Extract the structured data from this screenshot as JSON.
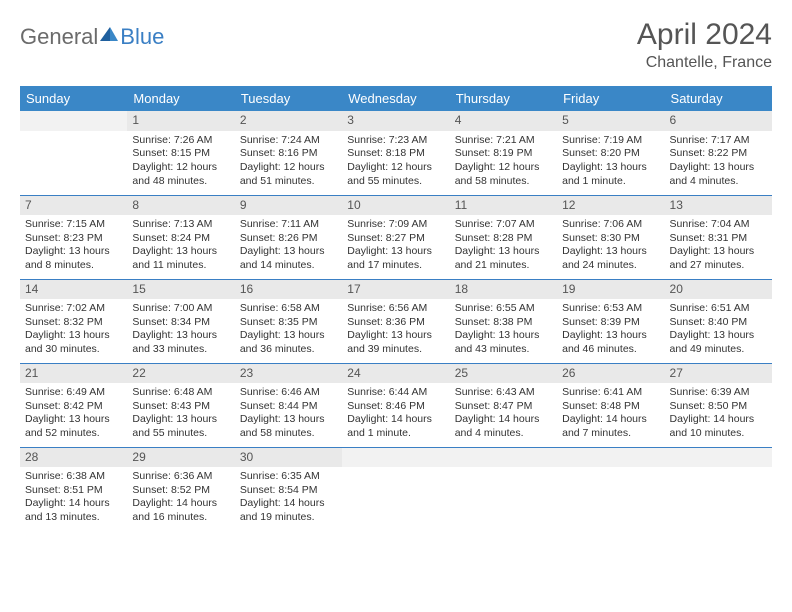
{
  "logo": {
    "general": "General",
    "blue": "Blue"
  },
  "title": "April 2024",
  "location": "Chantelle, France",
  "colors": {
    "header_bg": "#3a87c7",
    "border": "#3a7fc4",
    "daynum_bg": "#e9e9e9",
    "logo_gray": "#6b6b6b",
    "logo_blue": "#3a7fc4"
  },
  "typography": {
    "title_fontsize": 30,
    "location_fontsize": 16,
    "dayheader_fontsize": 13,
    "cell_fontsize": 10.5
  },
  "day_headers": [
    "Sunday",
    "Monday",
    "Tuesday",
    "Wednesday",
    "Thursday",
    "Friday",
    "Saturday"
  ],
  "weeks": [
    [
      null,
      {
        "d": "1",
        "sr": "Sunrise: 7:26 AM",
        "ss": "Sunset: 8:15 PM",
        "dl1": "Daylight: 12 hours",
        "dl2": "and 48 minutes."
      },
      {
        "d": "2",
        "sr": "Sunrise: 7:24 AM",
        "ss": "Sunset: 8:16 PM",
        "dl1": "Daylight: 12 hours",
        "dl2": "and 51 minutes."
      },
      {
        "d": "3",
        "sr": "Sunrise: 7:23 AM",
        "ss": "Sunset: 8:18 PM",
        "dl1": "Daylight: 12 hours",
        "dl2": "and 55 minutes."
      },
      {
        "d": "4",
        "sr": "Sunrise: 7:21 AM",
        "ss": "Sunset: 8:19 PM",
        "dl1": "Daylight: 12 hours",
        "dl2": "and 58 minutes."
      },
      {
        "d": "5",
        "sr": "Sunrise: 7:19 AM",
        "ss": "Sunset: 8:20 PM",
        "dl1": "Daylight: 13 hours",
        "dl2": "and 1 minute."
      },
      {
        "d": "6",
        "sr": "Sunrise: 7:17 AM",
        "ss": "Sunset: 8:22 PM",
        "dl1": "Daylight: 13 hours",
        "dl2": "and 4 minutes."
      }
    ],
    [
      {
        "d": "7",
        "sr": "Sunrise: 7:15 AM",
        "ss": "Sunset: 8:23 PM",
        "dl1": "Daylight: 13 hours",
        "dl2": "and 8 minutes."
      },
      {
        "d": "8",
        "sr": "Sunrise: 7:13 AM",
        "ss": "Sunset: 8:24 PM",
        "dl1": "Daylight: 13 hours",
        "dl2": "and 11 minutes."
      },
      {
        "d": "9",
        "sr": "Sunrise: 7:11 AM",
        "ss": "Sunset: 8:26 PM",
        "dl1": "Daylight: 13 hours",
        "dl2": "and 14 minutes."
      },
      {
        "d": "10",
        "sr": "Sunrise: 7:09 AM",
        "ss": "Sunset: 8:27 PM",
        "dl1": "Daylight: 13 hours",
        "dl2": "and 17 minutes."
      },
      {
        "d": "11",
        "sr": "Sunrise: 7:07 AM",
        "ss": "Sunset: 8:28 PM",
        "dl1": "Daylight: 13 hours",
        "dl2": "and 21 minutes."
      },
      {
        "d": "12",
        "sr": "Sunrise: 7:06 AM",
        "ss": "Sunset: 8:30 PM",
        "dl1": "Daylight: 13 hours",
        "dl2": "and 24 minutes."
      },
      {
        "d": "13",
        "sr": "Sunrise: 7:04 AM",
        "ss": "Sunset: 8:31 PM",
        "dl1": "Daylight: 13 hours",
        "dl2": "and 27 minutes."
      }
    ],
    [
      {
        "d": "14",
        "sr": "Sunrise: 7:02 AM",
        "ss": "Sunset: 8:32 PM",
        "dl1": "Daylight: 13 hours",
        "dl2": "and 30 minutes."
      },
      {
        "d": "15",
        "sr": "Sunrise: 7:00 AM",
        "ss": "Sunset: 8:34 PM",
        "dl1": "Daylight: 13 hours",
        "dl2": "and 33 minutes."
      },
      {
        "d": "16",
        "sr": "Sunrise: 6:58 AM",
        "ss": "Sunset: 8:35 PM",
        "dl1": "Daylight: 13 hours",
        "dl2": "and 36 minutes."
      },
      {
        "d": "17",
        "sr": "Sunrise: 6:56 AM",
        "ss": "Sunset: 8:36 PM",
        "dl1": "Daylight: 13 hours",
        "dl2": "and 39 minutes."
      },
      {
        "d": "18",
        "sr": "Sunrise: 6:55 AM",
        "ss": "Sunset: 8:38 PM",
        "dl1": "Daylight: 13 hours",
        "dl2": "and 43 minutes."
      },
      {
        "d": "19",
        "sr": "Sunrise: 6:53 AM",
        "ss": "Sunset: 8:39 PM",
        "dl1": "Daylight: 13 hours",
        "dl2": "and 46 minutes."
      },
      {
        "d": "20",
        "sr": "Sunrise: 6:51 AM",
        "ss": "Sunset: 8:40 PM",
        "dl1": "Daylight: 13 hours",
        "dl2": "and 49 minutes."
      }
    ],
    [
      {
        "d": "21",
        "sr": "Sunrise: 6:49 AM",
        "ss": "Sunset: 8:42 PM",
        "dl1": "Daylight: 13 hours",
        "dl2": "and 52 minutes."
      },
      {
        "d": "22",
        "sr": "Sunrise: 6:48 AM",
        "ss": "Sunset: 8:43 PM",
        "dl1": "Daylight: 13 hours",
        "dl2": "and 55 minutes."
      },
      {
        "d": "23",
        "sr": "Sunrise: 6:46 AM",
        "ss": "Sunset: 8:44 PM",
        "dl1": "Daylight: 13 hours",
        "dl2": "and 58 minutes."
      },
      {
        "d": "24",
        "sr": "Sunrise: 6:44 AM",
        "ss": "Sunset: 8:46 PM",
        "dl1": "Daylight: 14 hours",
        "dl2": "and 1 minute."
      },
      {
        "d": "25",
        "sr": "Sunrise: 6:43 AM",
        "ss": "Sunset: 8:47 PM",
        "dl1": "Daylight: 14 hours",
        "dl2": "and 4 minutes."
      },
      {
        "d": "26",
        "sr": "Sunrise: 6:41 AM",
        "ss": "Sunset: 8:48 PM",
        "dl1": "Daylight: 14 hours",
        "dl2": "and 7 minutes."
      },
      {
        "d": "27",
        "sr": "Sunrise: 6:39 AM",
        "ss": "Sunset: 8:50 PM",
        "dl1": "Daylight: 14 hours",
        "dl2": "and 10 minutes."
      }
    ],
    [
      {
        "d": "28",
        "sr": "Sunrise: 6:38 AM",
        "ss": "Sunset: 8:51 PM",
        "dl1": "Daylight: 14 hours",
        "dl2": "and 13 minutes."
      },
      {
        "d": "29",
        "sr": "Sunrise: 6:36 AM",
        "ss": "Sunset: 8:52 PM",
        "dl1": "Daylight: 14 hours",
        "dl2": "and 16 minutes."
      },
      {
        "d": "30",
        "sr": "Sunrise: 6:35 AM",
        "ss": "Sunset: 8:54 PM",
        "dl1": "Daylight: 14 hours",
        "dl2": "and 19 minutes."
      },
      null,
      null,
      null,
      null
    ]
  ]
}
